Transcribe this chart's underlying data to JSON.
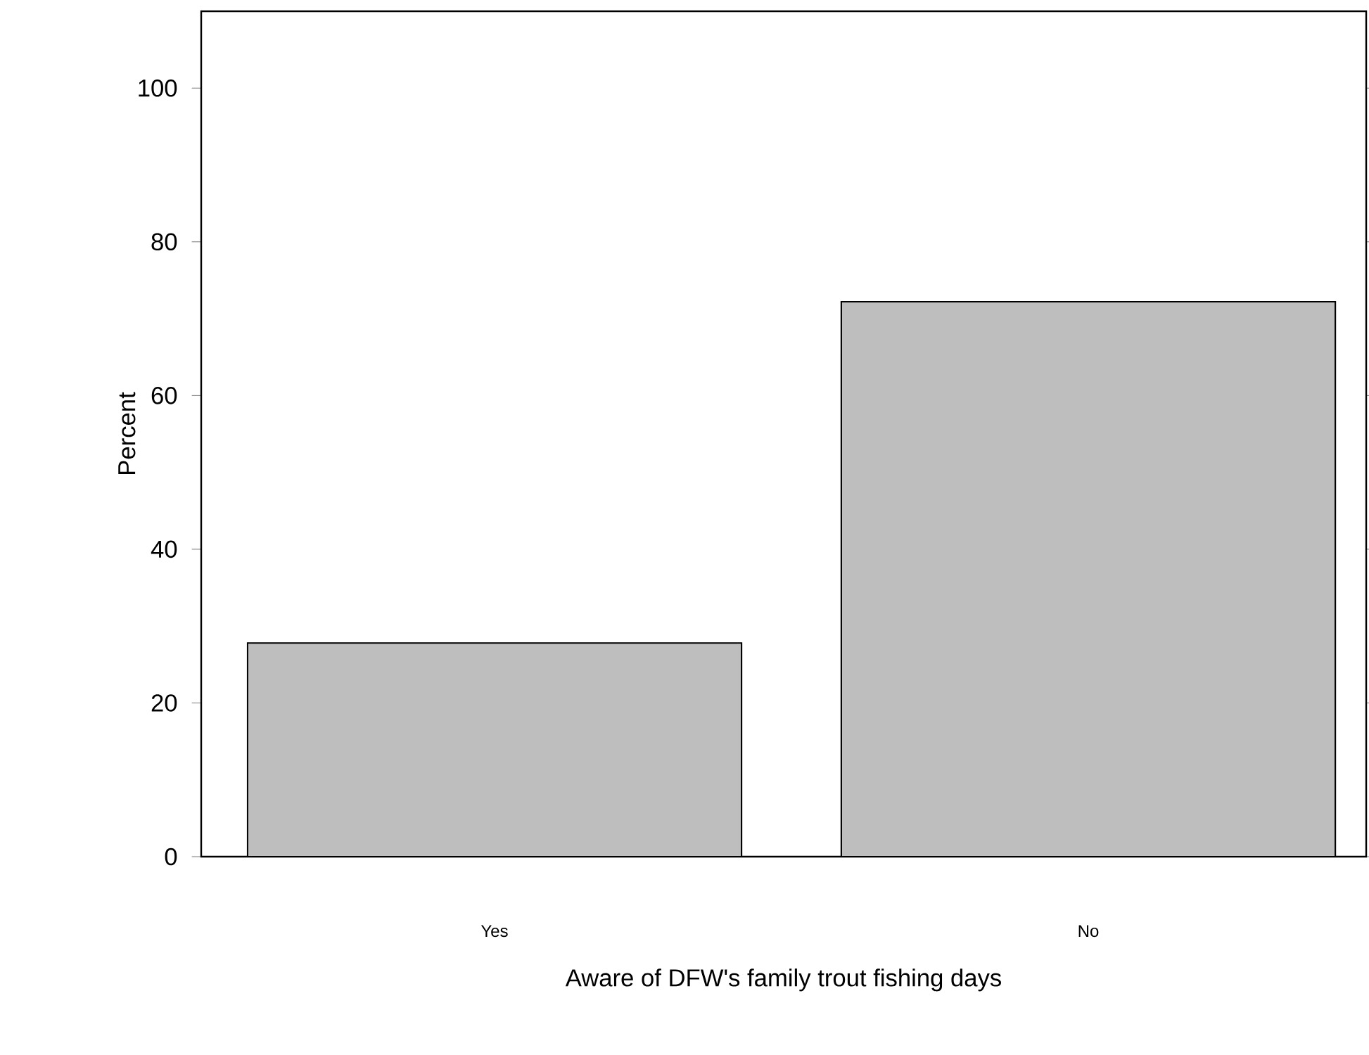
{
  "chart_data": {
    "type": "bar",
    "categories": [
      "Yes",
      "No"
    ],
    "values": [
      27.8,
      72.2
    ],
    "color": "#bebebe",
    "xlabel": "Aware of DFW's family trout fishing days",
    "ylabel": "Percent",
    "ylim": [
      0,
      110
    ],
    "yticks": [
      0,
      20,
      40,
      60,
      80,
      100
    ]
  }
}
